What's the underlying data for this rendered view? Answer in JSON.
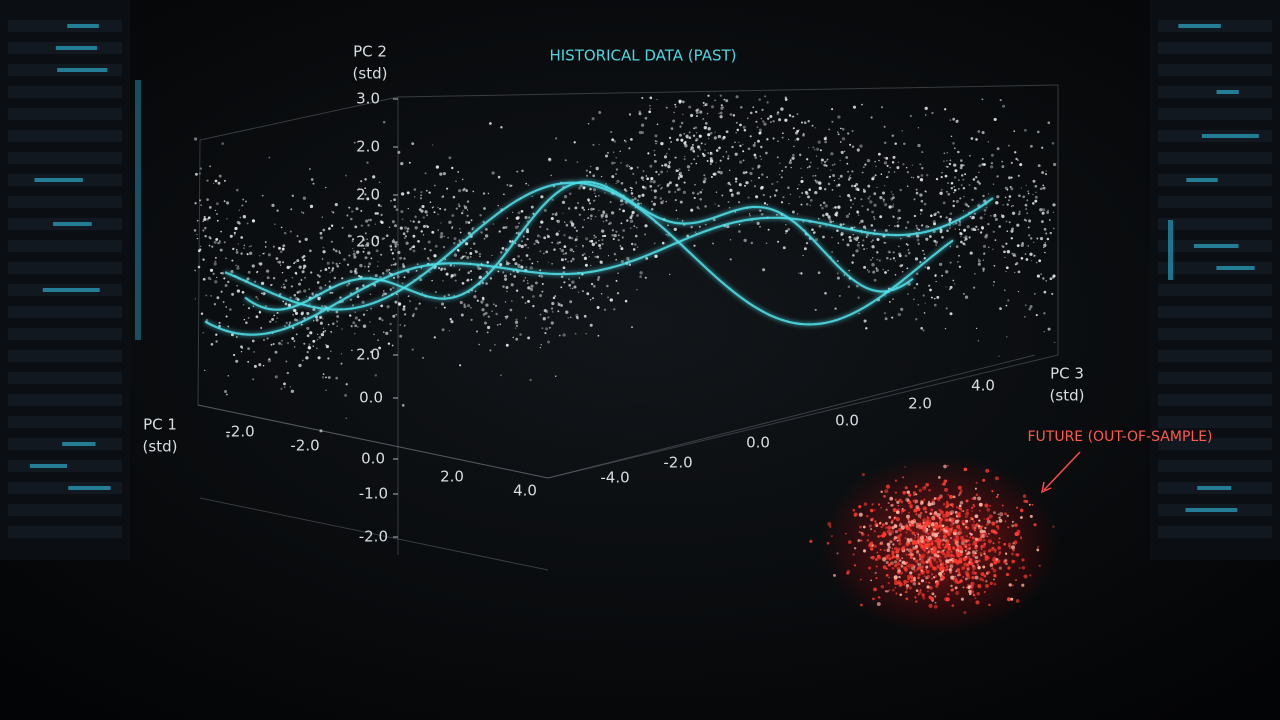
{
  "title": "HISTORICAL DATA (PAST)",
  "annotation": "FUTURE (OUT-OF-SAMPLE)",
  "axes": {
    "pc2": {
      "label": [
        "PC 2",
        "(std)"
      ],
      "ticks": [
        "3.0",
        "2.0",
        "2.0",
        "2.0",
        "2.0",
        "0.0",
        "0.0",
        "-1.0",
        "-2.0"
      ]
    },
    "pc1": {
      "label": [
        "PC 1",
        "(std)"
      ],
      "ticks": [
        "-2.0",
        "-2.0",
        "2.0",
        "4.0"
      ]
    },
    "pc3": {
      "label": [
        "PC 3",
        "(std)"
      ],
      "ticks": [
        "-4.0",
        "-2.0",
        "0.0",
        "0.0",
        "2.0",
        "4.0"
      ]
    }
  }
}
